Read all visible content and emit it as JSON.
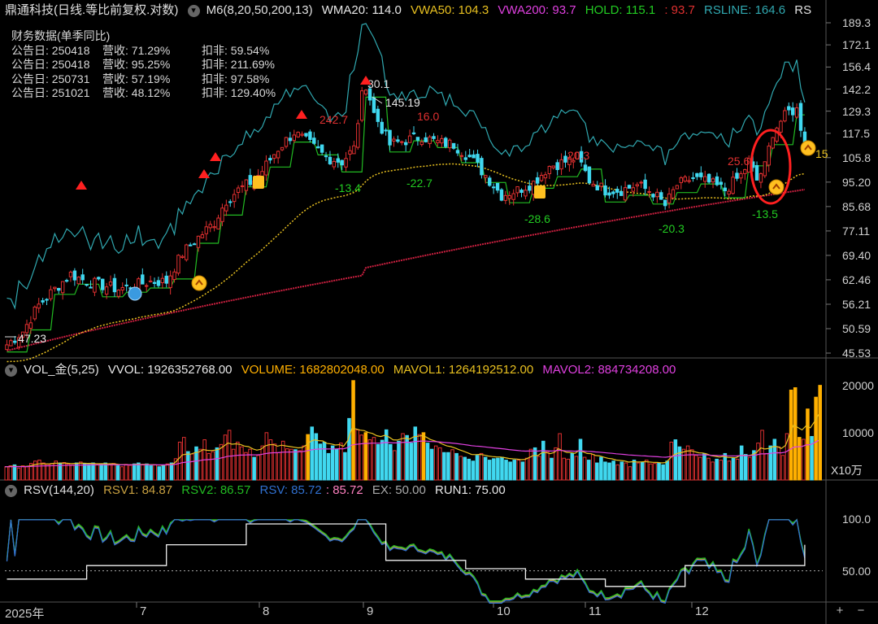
{
  "header_main": {
    "title": "鼎通科技(日线.等比前复权.对数)",
    "ma_label": "M6(8,20,50,200,13)",
    "wma20": "WMA20: 114.0",
    "vwa50": "VWA50: 104.3",
    "vwa200": "VWA200: 93.7",
    "hold": "HOLD: 115.1",
    "hold2": ": 93.7",
    "rsline": "RSLINE: 164.6",
    "rs_cut": "RS"
  },
  "financials": {
    "title": "财务数据(单季同比)",
    "rows": [
      {
        "date": "公告日: 250418",
        "rev": "营收: 71.29%",
        "net": "扣非: 59.54%"
      },
      {
        "date": "公告日: 250418",
        "rev": "营收: 95.25%",
        "net": "扣非: 211.69%"
      },
      {
        "date": "公告日: 250731",
        "rev": "营收: 57.19%",
        "net": "扣非: 97.58%"
      },
      {
        "date": "公告日: 251021",
        "rev": "营收: 48.12%",
        "net": "扣非: 129.40%"
      }
    ]
  },
  "header_vol": {
    "name": "VOL_金(5,25)",
    "vvol": "VVOL: 1926352768.00",
    "volume": "VOLUME: 1682802048.00",
    "mavol1": "MAVOL1: 1264192512.00",
    "mavol2": "MAVOL2: 884734208.00"
  },
  "header_rsv": {
    "name": "RSV(144,20)",
    "rsv1": "RSV1: 84.87",
    "rsv2": "RSV2: 86.57",
    "rsv": "RSV: 85.72",
    "rsv_val": ": 85.72",
    "ex": "EX: 50.00",
    "run1": "RUN1: 75.00"
  },
  "colors": {
    "up": "#e03030",
    "down": "#40d8f0",
    "wma": "#22bb22",
    "vwa50": "#e8c020",
    "vwa200": "#e040e0",
    "rsline": "#30a8b0",
    "vol_gold": "#ffb000"
  },
  "chart_data": [
    {
      "type": "candlestick",
      "title": "鼎通科技(日线.等比前复权.对数)",
      "scale": "log",
      "ylim": [
        45.53,
        189.3
      ],
      "y_ticks": [
        "189.3",
        "172.1",
        "156.4",
        "142.2",
        "129.3",
        "117.5",
        "105.8",
        "95.20",
        "85.68",
        "77.11",
        "69.40",
        "62.46",
        "56.21",
        "50.59",
        "45.53"
      ],
      "x_ticks": [
        "2025年",
        "7",
        "8",
        "9",
        "10",
        "11",
        "12"
      ],
      "price_path": [
        [
          0,
          47.2
        ],
        [
          4,
          50
        ],
        [
          8,
          56
        ],
        [
          12,
          60
        ],
        [
          16,
          64
        ],
        [
          20,
          62
        ],
        [
          24,
          61
        ],
        [
          28,
          60
        ],
        [
          32,
          61
        ],
        [
          36,
          62
        ],
        [
          40,
          62
        ],
        [
          44,
          70
        ],
        [
          48,
          75
        ],
        [
          52,
          80
        ],
        [
          55,
          88
        ],
        [
          58,
          92
        ],
        [
          62,
          96
        ],
        [
          64,
          100
        ],
        [
          68,
          110
        ],
        [
          72,
          118
        ],
        [
          76,
          112
        ],
        [
          80,
          106
        ],
        [
          84,
          104
        ],
        [
          87,
          110
        ],
        [
          89,
          138
        ],
        [
          90,
          145.19
        ],
        [
          92,
          128
        ],
        [
          96,
          112
        ],
        [
          100,
          114
        ],
        [
          104,
          116
        ],
        [
          108,
          113
        ],
        [
          112,
          112
        ],
        [
          116,
          106
        ],
        [
          120,
          98
        ],
        [
          124,
          90
        ],
        [
          128,
          92
        ],
        [
          132,
          95
        ],
        [
          136,
          102
        ],
        [
          140,
          104
        ],
        [
          143,
          106
        ],
        [
          146,
          96
        ],
        [
          150,
          92
        ],
        [
          154,
          92
        ],
        [
          158,
          94
        ],
        [
          162,
          91
        ],
        [
          165,
          86
        ],
        [
          168,
          94
        ],
        [
          172,
          97
        ],
        [
          176,
          95
        ],
        [
          180,
          92
        ],
        [
          184,
          98
        ],
        [
          186,
          104
        ],
        [
          188,
          96
        ],
        [
          190,
          102
        ],
        [
          192,
          118
        ],
        [
          194,
          124
        ],
        [
          196,
          129
        ],
        [
          198,
          130
        ],
        [
          200,
          112
        ]
      ],
      "annotations": [
        "242.7",
        "30.1",
        "16.0",
        "20.3",
        "25.6",
        "-13.4",
        "-22.7",
        "-28.6",
        "-20.3",
        "-13.5",
        "15",
        "145.19",
        "47.23"
      ],
      "series": [
        {
          "name": "WMA20",
          "last": 114.0
        },
        {
          "name": "VWA50",
          "last": 104.3
        },
        {
          "name": "VWA200",
          "last": 93.7
        },
        {
          "name": "HOLD",
          "last": 115.1
        },
        {
          "name": "RSLINE",
          "last": 164.6
        }
      ]
    },
    {
      "type": "bar",
      "title": "VOL_金(5,25)",
      "ylim": [
        0,
        22000
      ],
      "y_ticks": [
        "20000",
        "10000"
      ],
      "unit": "X10万",
      "values_approx": [
        2800,
        3000,
        3200,
        2500,
        3000,
        2800,
        3500,
        4000,
        4200,
        3600,
        3300,
        3500,
        4000,
        3600,
        3700,
        3400,
        3200,
        3600,
        3800,
        3500,
        3300,
        3600,
        3200,
        3400,
        3600,
        3200,
        3500,
        3000,
        2800,
        3300,
        3100,
        3400,
        3600,
        3200,
        3400,
        3000,
        3200,
        2800,
        3000,
        3400,
        3600,
        4500,
        8000,
        9000,
        6000,
        5500,
        7000,
        6500,
        8500,
        5600,
        6000,
        6800,
        7500,
        9500,
        10500,
        6500,
        8000,
        7000,
        5800,
        6500,
        4800,
        5200,
        7200,
        10000,
        8500,
        7600,
        5800,
        8200,
        6600,
        6500,
        6400,
        6200,
        7200,
        9600,
        11200,
        9800,
        7600,
        8000,
        5600,
        7200,
        6500,
        7800,
        5800,
        13000,
        21000,
        10600,
        9500,
        10000,
        8500,
        9000,
        7500,
        8400,
        10600,
        7500,
        6200,
        8200,
        9800,
        9400,
        7800,
        11200,
        9600,
        10000,
        7800,
        6500,
        7200,
        6800,
        5800,
        5800,
        6400,
        5600,
        5000,
        4800,
        4400,
        4000,
        5200,
        5600,
        4800,
        4200,
        4500,
        4600,
        4800,
        4200,
        3800,
        4200,
        4200,
        3800,
        4600,
        6500,
        6800,
        5000,
        8200,
        6000,
        4600,
        6800,
        9800,
        4600,
        4400,
        5600,
        5000,
        8600,
        4800,
        4200,
        5400,
        3600,
        4800,
        3800,
        3600,
        4000,
        3200,
        3800,
        3600,
        2800,
        4200,
        3600,
        3800,
        4200,
        3400,
        3500,
        3600,
        3200,
        4000,
        8000,
        8500,
        7000,
        6500,
        7200,
        6400,
        5200,
        4800,
        5600,
        4600,
        3800,
        4400,
        4200,
        5600,
        4000,
        4600,
        4400,
        7200,
        5400,
        4800,
        6200,
        7800,
        10500,
        5600,
        7200,
        8600,
        7000,
        5200,
        9800,
        19000,
        19500,
        9000,
        8600,
        15000,
        9200,
        17500,
        20000
      ]
    },
    {
      "type": "line",
      "title": "RSV(144,20)",
      "ylim": [
        20,
        120
      ],
      "y_ticks": [
        "100.0",
        "50.00"
      ],
      "series": [
        {
          "name": "RSV1",
          "last": 84.87
        },
        {
          "name": "RSV2",
          "last": 86.57
        },
        {
          "name": "RSV",
          "last": 85.72
        },
        {
          "name": "EX",
          "last": 50.0
        },
        {
          "name": "RUN1",
          "last": 75.0
        }
      ]
    }
  ],
  "right_axis": {
    "vol_unit": "X10万"
  },
  "footer": {
    "zoom_in": "+",
    "zoom_out": "−"
  }
}
